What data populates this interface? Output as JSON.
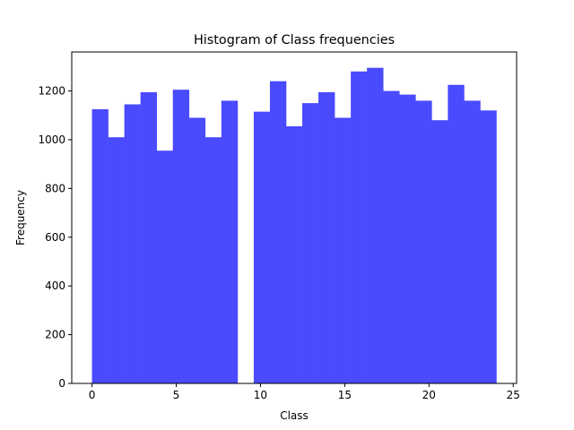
{
  "chart_data": {
    "type": "bar",
    "title": "Histogram of Class frequencies",
    "xlabel": "Class",
    "ylabel": "Frequency",
    "bin_edges": [
      0,
      0.96,
      1.92,
      2.88,
      3.84,
      4.8,
      5.76,
      6.72,
      7.68,
      8.64,
      9.6,
      10.56,
      11.52,
      12.48,
      13.44,
      14.4,
      15.36,
      16.32,
      17.28,
      18.24,
      19.2,
      20.16,
      21.12,
      22.08,
      23.04,
      24
    ],
    "values": [
      1125,
      1010,
      1145,
      1195,
      955,
      1205,
      1090,
      1010,
      1160,
      0,
      1115,
      1240,
      1055,
      1150,
      1195,
      1090,
      1280,
      1295,
      1200,
      1185,
      1160,
      1080,
      1225,
      1160,
      1120
    ],
    "xlim": [
      -1.2,
      25.2
    ],
    "ylim": [
      0,
      1360
    ],
    "xticks": [
      0,
      5,
      10,
      15,
      20,
      25
    ],
    "xtick_labels": [
      "0",
      "5",
      "10",
      "15",
      "20",
      "25"
    ],
    "yticks": [
      0,
      200,
      400,
      600,
      800,
      1000,
      1200
    ],
    "ytick_labels": [
      "0",
      "200",
      "400",
      "600",
      "800",
      "1000",
      "1200"
    ],
    "bar_color": "#4a4aff",
    "grid": false,
    "legend": "none"
  }
}
